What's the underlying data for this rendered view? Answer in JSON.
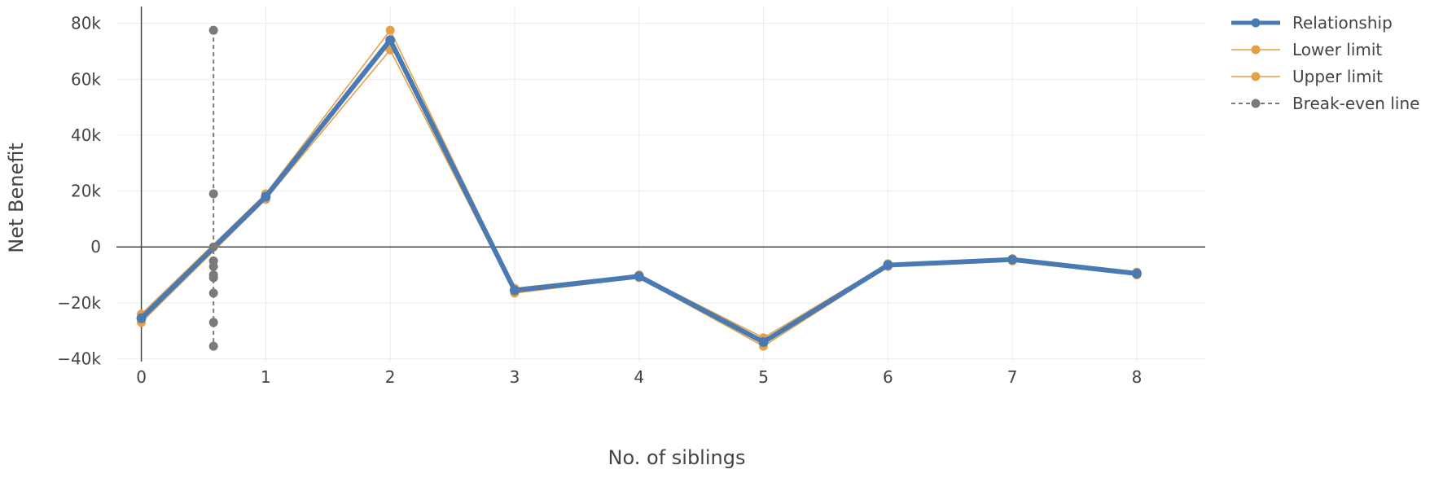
{
  "chart_data": {
    "type": "line",
    "title": "",
    "xlabel": "No. of siblings",
    "ylabel": "Net Benefit",
    "xlim": [
      -0.2,
      8.55
    ],
    "ylim": [
      -41000,
      86000
    ],
    "x_ticks": [
      0,
      1,
      2,
      3,
      4,
      5,
      6,
      7,
      8
    ],
    "x_tick_labels": [
      "0",
      "1",
      "2",
      "3",
      "4",
      "5",
      "6",
      "7",
      "8"
    ],
    "y_ticks": [
      -40000,
      -20000,
      0,
      20000,
      40000,
      60000,
      80000
    ],
    "y_tick_labels": [
      "−40k",
      "−20k",
      "0",
      "20k",
      "40k",
      "60k",
      "80k"
    ],
    "grid": true,
    "legend_position": "top-right",
    "series": [
      {
        "name": "Relationship",
        "color": "#4a7ab4",
        "style": "solid-thick",
        "x": [
          0,
          1,
          2,
          3,
          4,
          5,
          6,
          7,
          8
        ],
        "y": [
          -25500,
          18000,
          74000,
          -15500,
          -10500,
          -34000,
          -6500,
          -4500,
          -9500
        ]
      },
      {
        "name": "Lower limit",
        "color": "#e3a046",
        "style": "solid-thin",
        "x": [
          0,
          1,
          2,
          3,
          4,
          5,
          6,
          7,
          8
        ],
        "y": [
          -27000,
          17000,
          70500,
          -16500,
          -11000,
          -35500,
          -7000,
          -5000,
          -10000
        ]
      },
      {
        "name": "Upper limit",
        "color": "#e3a046",
        "style": "solid-thin",
        "x": [
          0,
          1,
          2,
          3,
          4,
          5,
          6,
          7,
          8
        ],
        "y": [
          -24000,
          19000,
          77500,
          -14800,
          -10000,
          -32500,
          -6000,
          -4200,
          -9000
        ]
      },
      {
        "name": "Break-even line",
        "color": "#7a7a7a",
        "style": "dashed",
        "x": [
          0.58,
          0.58,
          0.58,
          0.58,
          0.58,
          0.58,
          0.58,
          0.58,
          0.58,
          0.58
        ],
        "y": [
          77500,
          19000,
          0,
          -5000,
          -7000,
          -10000,
          -11000,
          -16500,
          -27000,
          -35500
        ]
      }
    ]
  }
}
